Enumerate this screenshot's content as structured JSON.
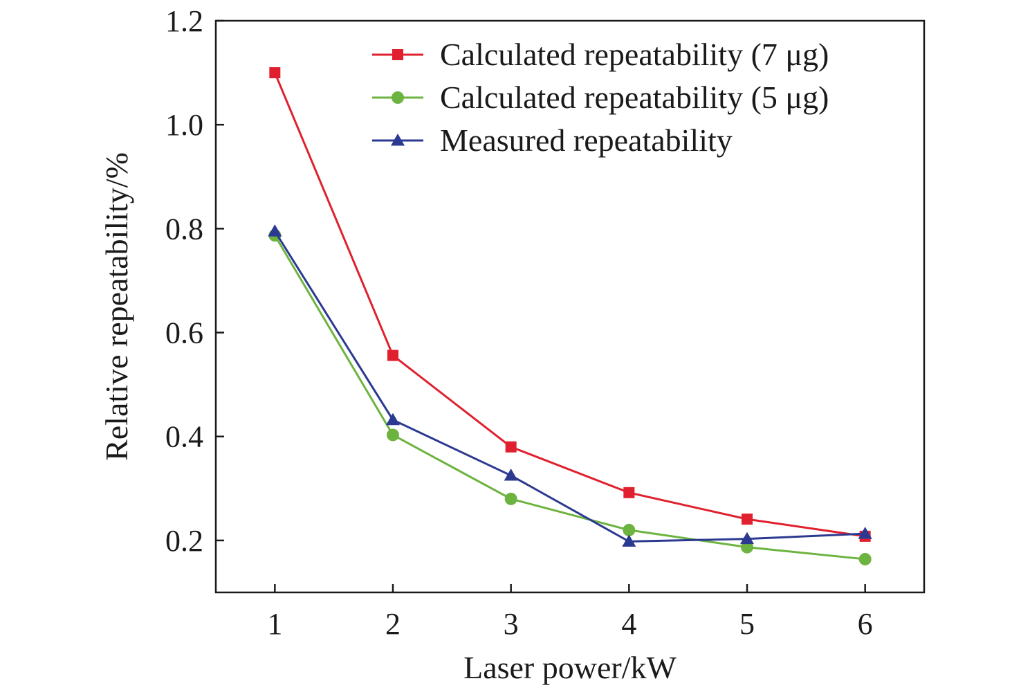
{
  "chart_data": {
    "type": "line",
    "title": "",
    "xlabel": "Laser power/kW",
    "ylabel": "Relative repeatability/%",
    "x": [
      1,
      2,
      3,
      4,
      5,
      6
    ],
    "xlim": [
      0.5,
      6.5
    ],
    "ylim": [
      0.1,
      1.2
    ],
    "x_ticks": [
      1,
      2,
      3,
      4,
      5,
      6
    ],
    "x_tick_labels": [
      "1",
      "2",
      "3",
      "4",
      "5",
      "6"
    ],
    "y_ticks": [
      0.2,
      0.4,
      0.6,
      0.8,
      1.0,
      1.2
    ],
    "y_tick_labels": [
      "0.2",
      "0.4",
      "0.6",
      "0.8",
      "1.0",
      "1.2"
    ],
    "grid": false,
    "legend_position": "top-right",
    "series": [
      {
        "name": "Calculated repeatability (7 μg)",
        "marker": "square",
        "color": "#e0202e",
        "values": [
          1.1,
          0.556,
          0.38,
          0.292,
          0.241,
          0.208
        ]
      },
      {
        "name": "Calculated repeatability (5 μg)",
        "marker": "circle",
        "color": "#6db33f",
        "values": [
          0.787,
          0.403,
          0.28,
          0.22,
          0.187,
          0.164
        ]
      },
      {
        "name": "Measured repeatability",
        "marker": "triangle",
        "color": "#2b3990",
        "values": [
          0.795,
          0.432,
          0.325,
          0.198,
          0.203,
          0.213
        ]
      }
    ]
  }
}
